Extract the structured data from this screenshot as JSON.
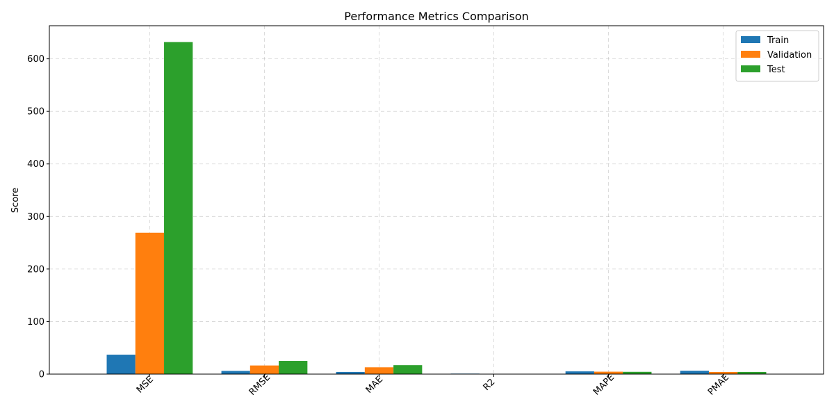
{
  "chart_data": {
    "type": "bar",
    "title": "Performance Metrics Comparison",
    "xlabel": "",
    "ylabel": "Score",
    "categories": [
      "MSE",
      "RMSE",
      "MAE",
      "R2",
      "MAPE",
      "PMAE"
    ],
    "series": [
      {
        "name": "Train",
        "color": "#1f77b4",
        "values": [
          37,
          6.1,
          4.1,
          0.95,
          5.2,
          6.4
        ]
      },
      {
        "name": "Validation",
        "color": "#ff7f0e",
        "values": [
          269,
          16.4,
          12.9,
          0.6,
          4.6,
          4.0
        ]
      },
      {
        "name": "Test",
        "color": "#2ca02c",
        "values": [
          632,
          25.1,
          17.0,
          0.45,
          4.3,
          4.1
        ]
      }
    ],
    "ylim": [
      0,
      663
    ],
    "yticks": [
      0,
      100,
      200,
      300,
      400,
      500,
      600
    ],
    "grid": true,
    "legend_position": "top-right",
    "xtick_rotation_deg": 45
  }
}
